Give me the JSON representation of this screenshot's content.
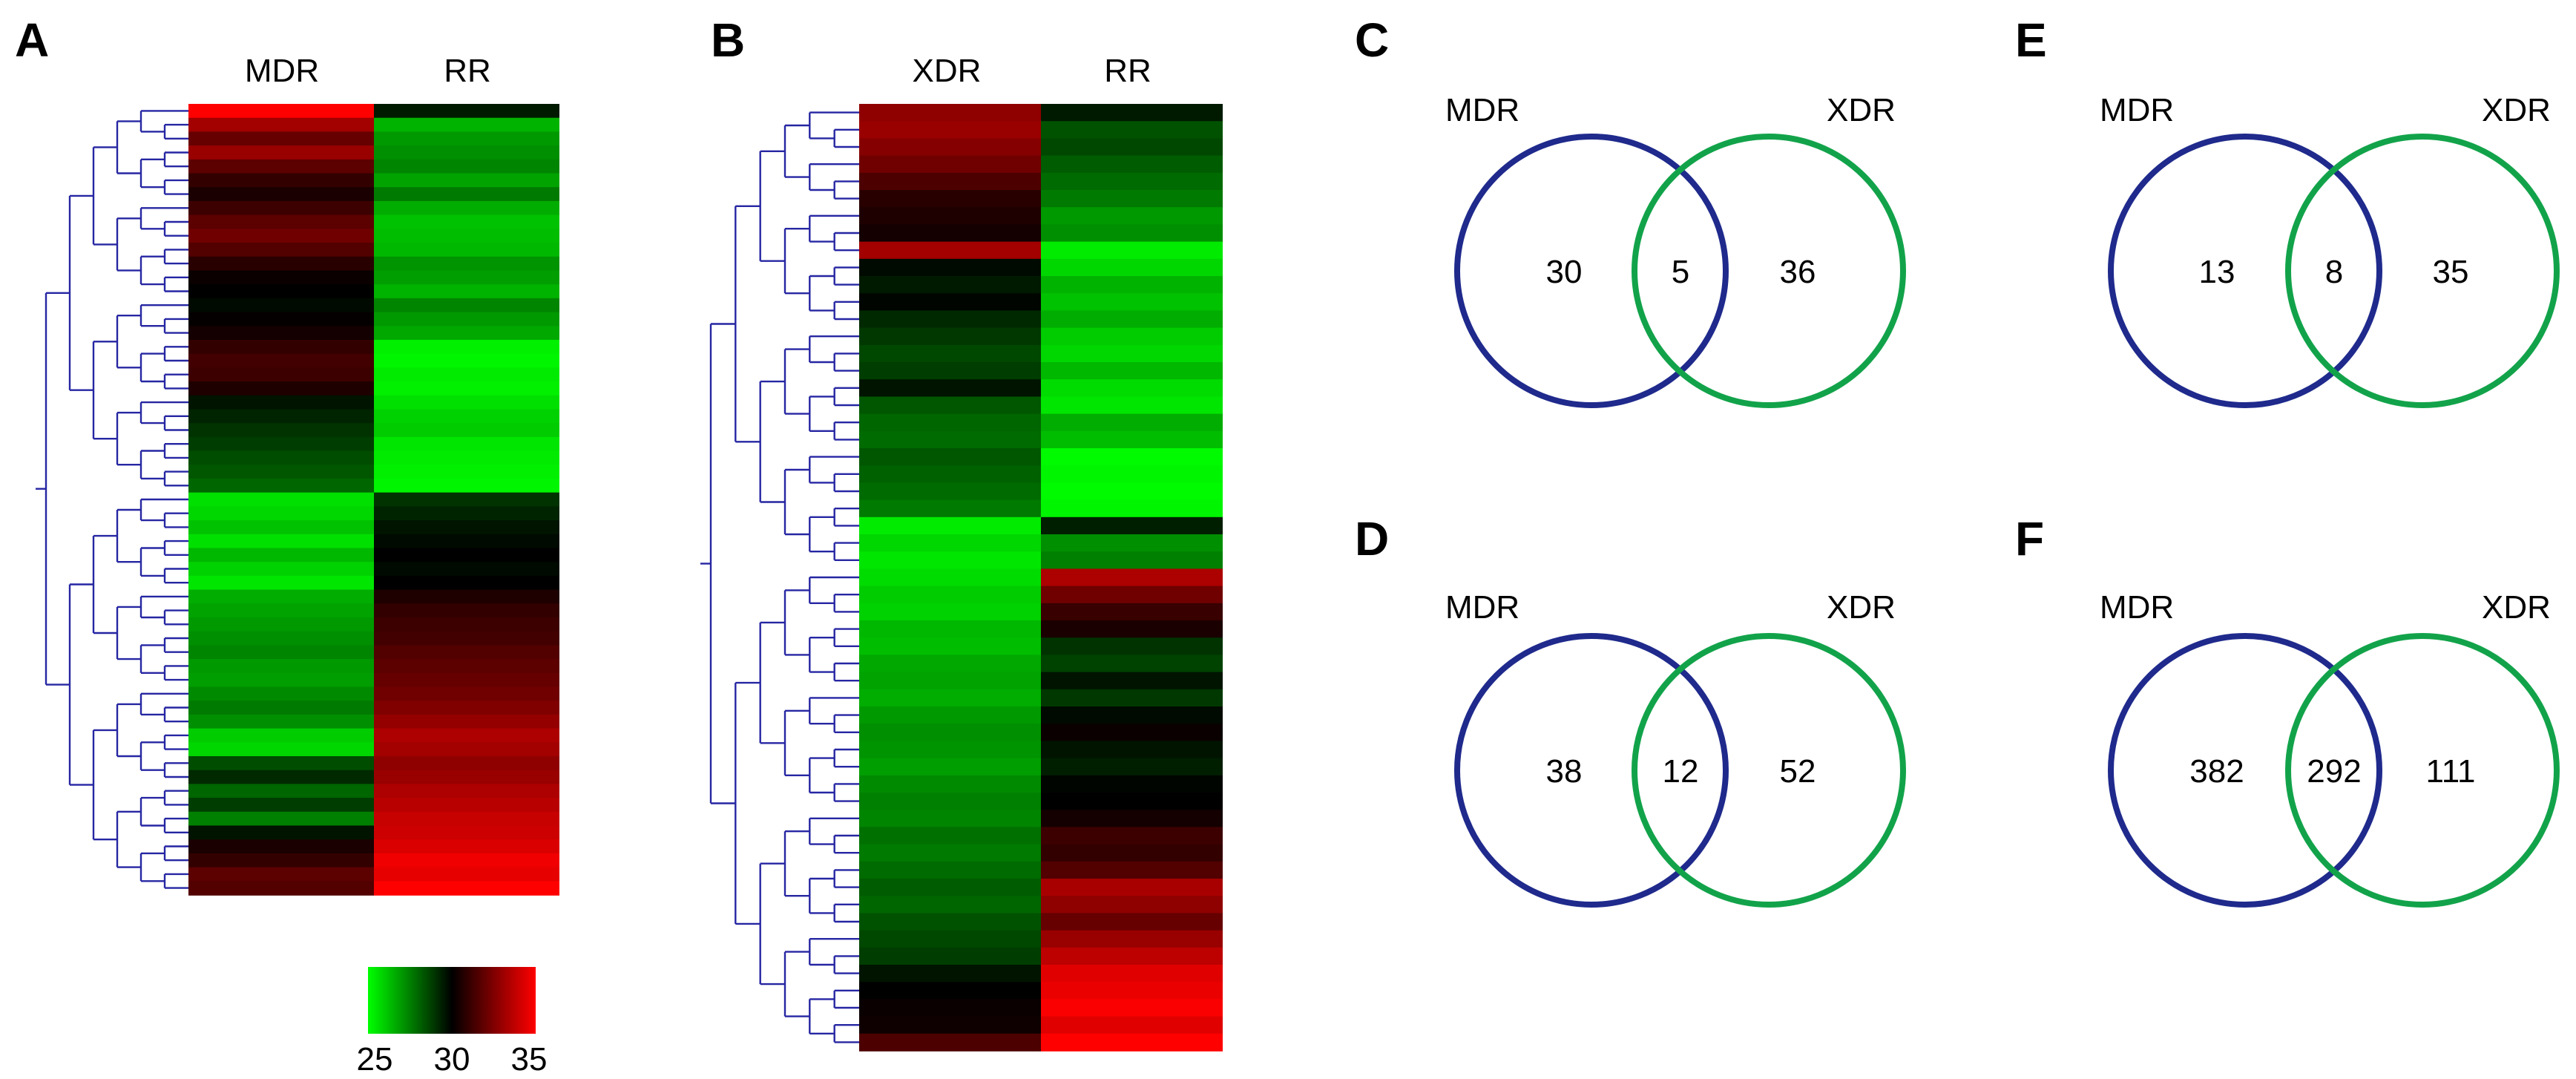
{
  "panels": {
    "a": {
      "label": "A",
      "columns": [
        "MDR",
        "RR"
      ],
      "heatmap": [
        [
          35.0,
          29.5
        ],
        [
          33.2,
          26.5
        ],
        [
          32.0,
          27.0
        ],
        [
          33.0,
          27.2
        ],
        [
          31.8,
          27.4
        ],
        [
          31.0,
          26.8
        ],
        [
          30.5,
          27.6
        ],
        [
          31.2,
          26.6
        ],
        [
          31.8,
          26.2
        ],
        [
          32.2,
          26.3
        ],
        [
          31.6,
          26.4
        ],
        [
          30.8,
          27.1
        ],
        [
          30.2,
          26.9
        ],
        [
          30.0,
          26.5
        ],
        [
          29.8,
          27.4
        ],
        [
          30.1,
          27.0
        ],
        [
          30.4,
          26.7
        ],
        [
          31.0,
          25.3
        ],
        [
          31.3,
          25.2
        ],
        [
          31.2,
          25.4
        ],
        [
          30.6,
          25.3
        ],
        [
          29.6,
          25.6
        ],
        [
          29.3,
          25.9
        ],
        [
          29.0,
          26.0
        ],
        [
          28.8,
          25.5
        ],
        [
          28.5,
          25.4
        ],
        [
          28.3,
          25.3
        ],
        [
          28.0,
          25.2
        ],
        [
          25.6,
          29.0
        ],
        [
          25.8,
          29.3
        ],
        [
          26.2,
          29.6
        ],
        [
          25.6,
          29.8
        ],
        [
          26.4,
          30.0
        ],
        [
          25.9,
          29.8
        ],
        [
          25.5,
          30.0
        ],
        [
          26.6,
          30.6
        ],
        [
          26.8,
          31.0
        ],
        [
          27.0,
          31.2
        ],
        [
          27.2,
          31.3
        ],
        [
          27.4,
          31.6
        ],
        [
          27.0,
          31.8
        ],
        [
          26.9,
          32.0
        ],
        [
          27.3,
          32.2
        ],
        [
          27.6,
          32.5
        ],
        [
          27.2,
          32.9
        ],
        [
          26.0,
          33.4
        ],
        [
          25.8,
          33.2
        ],
        [
          28.5,
          32.8
        ],
        [
          29.2,
          33.0
        ],
        [
          28.0,
          33.4
        ],
        [
          28.8,
          33.6
        ],
        [
          27.5,
          33.9
        ],
        [
          29.6,
          34.0
        ],
        [
          30.5,
          34.3
        ],
        [
          31.0,
          34.7
        ],
        [
          31.8,
          34.5
        ],
        [
          31.6,
          35.0
        ]
      ]
    },
    "b": {
      "label": "B",
      "columns": [
        "XDR",
        "RR"
      ],
      "heatmap": [
        [
          32.8,
          29.5
        ],
        [
          33.0,
          28.4
        ],
        [
          32.6,
          28.6
        ],
        [
          32.2,
          28.2
        ],
        [
          31.5,
          27.9
        ],
        [
          30.8,
          27.6
        ],
        [
          30.6,
          27.0
        ],
        [
          30.4,
          27.2
        ],
        [
          33.2,
          25.4
        ],
        [
          29.8,
          25.8
        ],
        [
          29.5,
          26.5
        ],
        [
          29.9,
          26.2
        ],
        [
          29.2,
          26.6
        ],
        [
          28.9,
          26.0
        ],
        [
          28.6,
          25.8
        ],
        [
          28.8,
          26.4
        ],
        [
          29.6,
          25.7
        ],
        [
          28.3,
          25.5
        ],
        [
          28.0,
          26.6
        ],
        [
          27.9,
          26.3
        ],
        [
          28.3,
          25.1
        ],
        [
          28.1,
          25.2
        ],
        [
          27.9,
          25.1
        ],
        [
          27.6,
          25.2
        ],
        [
          25.4,
          29.4
        ],
        [
          25.8,
          27.2
        ],
        [
          25.5,
          27.5
        ],
        [
          25.7,
          33.4
        ],
        [
          26.0,
          32.2
        ],
        [
          25.9,
          31.1
        ],
        [
          26.4,
          30.5
        ],
        [
          26.3,
          29.0
        ],
        [
          26.7,
          28.7
        ],
        [
          26.8,
          29.6
        ],
        [
          26.6,
          28.9
        ],
        [
          27.0,
          29.8
        ],
        [
          27.2,
          30.2
        ],
        [
          27.1,
          29.6
        ],
        [
          26.9,
          29.4
        ],
        [
          27.3,
          29.9
        ],
        [
          27.5,
          30.0
        ],
        [
          27.4,
          30.4
        ],
        [
          27.8,
          31.2
        ],
        [
          27.6,
          31.0
        ],
        [
          27.9,
          31.6
        ],
        [
          28.2,
          33.3
        ],
        [
          28.0,
          32.8
        ],
        [
          28.4,
          32.0
        ],
        [
          28.6,
          33.0
        ],
        [
          28.8,
          33.7
        ],
        [
          29.6,
          34.4
        ],
        [
          30.0,
          34.6
        ],
        [
          30.2,
          34.9
        ],
        [
          30.3,
          34.4
        ],
        [
          31.5,
          35.0
        ]
      ]
    },
    "c": {
      "label": "C",
      "left": "MDR",
      "right": "XDR",
      "only_left": "30",
      "both": "5",
      "only_right": "36"
    },
    "d": {
      "label": "D",
      "left": "MDR",
      "right": "XDR",
      "only_left": "38",
      "both": "12",
      "only_right": "52"
    },
    "e": {
      "label": "E",
      "left": "MDR",
      "right": "XDR",
      "only_left": "13",
      "both": "8",
      "only_right": "35"
    },
    "f": {
      "label": "F",
      "left": "MDR",
      "right": "XDR",
      "only_left": "382",
      "both": "292",
      "only_right": "111"
    }
  },
  "color_key": {
    "ticks": [
      "25",
      "30",
      "35"
    ],
    "range": [
      25,
      35
    ],
    "colors": {
      "low": "#00ff00",
      "mid": "#000000",
      "high": "#ff0000"
    }
  },
  "colors": {
    "dendrogram": "#2626a3",
    "venn_left": "#1f2a8c",
    "venn_right": "#12a34a"
  }
}
